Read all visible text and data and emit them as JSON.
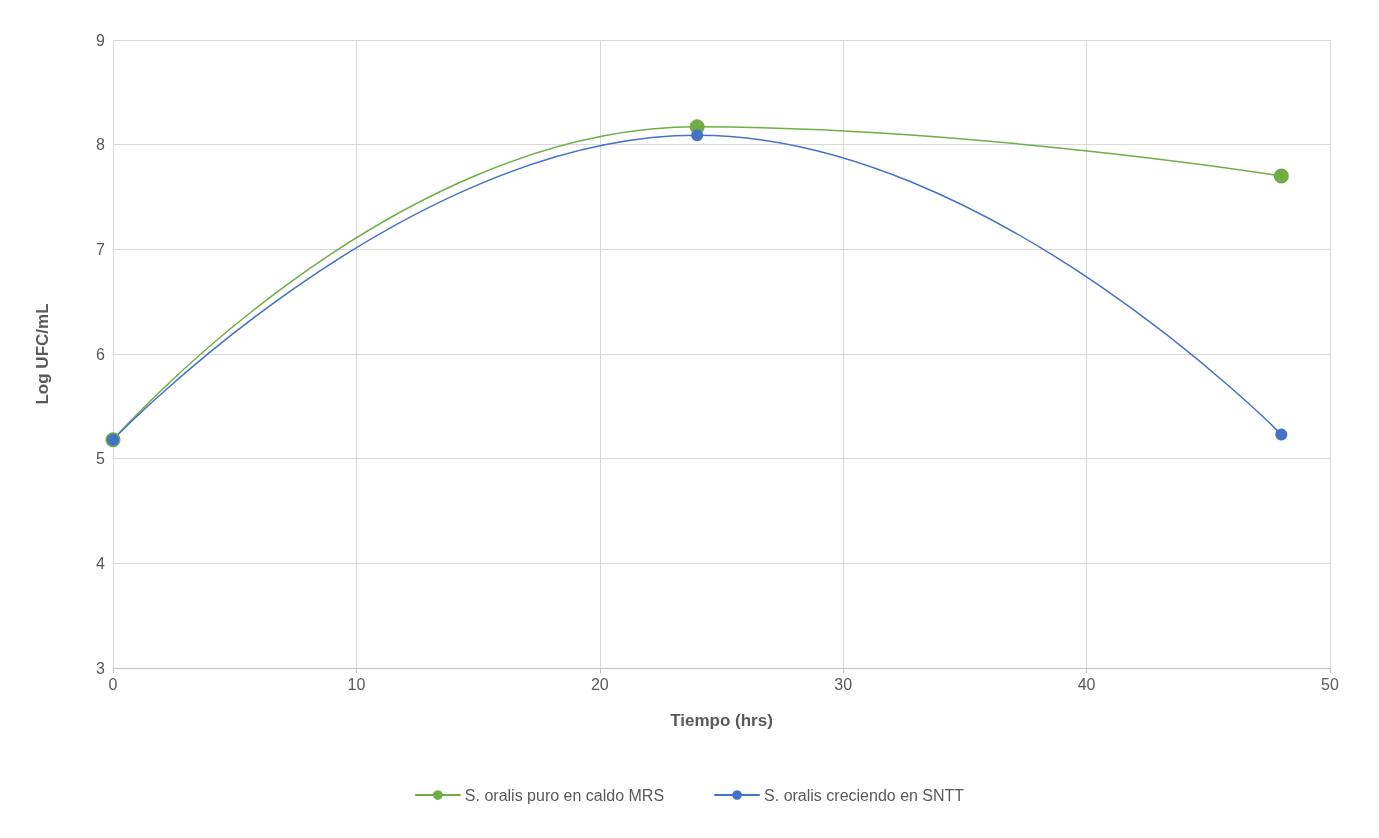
{
  "chart_data": {
    "type": "line",
    "xlabel": "Tiempo (hrs)",
    "ylabel": "Log UFC/mL",
    "x": [
      0,
      24,
      48
    ],
    "series": [
      {
        "name": "S. oralis puro en caldo MRS",
        "color": "#70ad47",
        "values": [
          5.18,
          8.17,
          7.7
        ]
      },
      {
        "name": "S. oralis creciendo en SNTT",
        "color": "#4472c4",
        "values": [
          5.18,
          8.09,
          5.23
        ]
      }
    ],
    "xlim": [
      0,
      50
    ],
    "xticks": [
      0,
      10,
      20,
      30,
      40,
      50
    ],
    "ylim": [
      3,
      9
    ],
    "yticks": [
      3,
      4,
      5,
      6,
      7,
      8,
      9
    ],
    "grid": true,
    "legend": "bottom",
    "marker": "circle",
    "line_style": "solid"
  }
}
